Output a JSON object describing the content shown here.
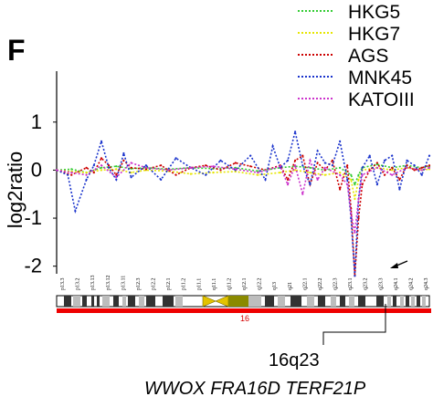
{
  "panel_label": "F",
  "chart_data": {
    "type": "line",
    "title": "",
    "xlabel": "",
    "ylabel": "log2ratio",
    "ylim": [
      -2.5,
      1.3
    ],
    "yticks": [
      1,
      0,
      -1,
      -2
    ],
    "xlim": [
      0,
      100
    ],
    "grid": false,
    "legend_position": "top-right",
    "chromosome": "16",
    "bands": [
      "p13.3",
      "p13.2",
      "p13.13",
      "p13.12",
      "p13.11",
      "p12.3",
      "p12.2",
      "p12.1",
      "p11.2",
      "p11.1",
      "q11.1",
      "q11.2",
      "q12.1",
      "q12.2",
      "q13",
      "q21",
      "q22.1",
      "q22.2",
      "q22.3",
      "q23.1",
      "q23.2",
      "q23.3",
      "q24.1",
      "q24.2",
      "q24.3"
    ],
    "annotation": {
      "band": "16q23",
      "genes": "WWOX FRA16D TERF21P",
      "x": 80
    },
    "series": [
      {
        "name": "HKG5",
        "color": "#33cc33",
        "x": [
          0,
          4,
          8,
          12,
          16,
          20,
          24,
          30,
          36,
          42,
          48,
          54,
          60,
          64,
          68,
          72,
          76,
          79,
          80,
          81,
          82,
          86,
          90,
          94,
          98,
          100
        ],
        "values": [
          0,
          0.02,
          -0.05,
          0.05,
          0.08,
          0.03,
          0.05,
          0.02,
          0.05,
          0.03,
          0.05,
          -0.02,
          0.05,
          0.08,
          0.05,
          0,
          0.05,
          -0.1,
          -0.3,
          -0.1,
          0.05,
          0.12,
          0.05,
          0.1,
          0.05,
          0.08
        ]
      },
      {
        "name": "HKG7",
        "color": "#e6e600",
        "x": [
          0,
          4,
          8,
          12,
          16,
          20,
          24,
          30,
          36,
          42,
          48,
          54,
          60,
          64,
          68,
          72,
          76,
          79,
          80,
          81,
          82,
          86,
          90,
          94,
          98,
          100
        ],
        "values": [
          0,
          -0.03,
          -0.05,
          0,
          0.02,
          -0.05,
          0,
          -0.02,
          -0.08,
          -0.05,
          -0.03,
          -0.1,
          -0.05,
          0,
          -0.05,
          -0.1,
          -0.05,
          -0.2,
          -0.6,
          -0.2,
          0,
          0.05,
          0,
          0.05,
          0,
          0.02
        ]
      },
      {
        "name": "AGS",
        "color": "#cc0000",
        "x": [
          0,
          4,
          8,
          10,
          12,
          14,
          16,
          18,
          20,
          24,
          28,
          32,
          36,
          40,
          44,
          48,
          52,
          56,
          60,
          62,
          64,
          66,
          68,
          70,
          72,
          74,
          76,
          78,
          79,
          80,
          81,
          82,
          84,
          86,
          88,
          90,
          92,
          94,
          96,
          98,
          100
        ],
        "values": [
          0,
          -0.1,
          0.05,
          -0.05,
          0.25,
          0.1,
          -0.1,
          0.2,
          0.05,
          0.02,
          0.1,
          -0.1,
          0.05,
          0.1,
          0,
          0.15,
          0.08,
          0,
          0.1,
          -0.2,
          0.2,
          0.3,
          -0.3,
          0.15,
          0,
          0.2,
          -0.4,
          0.1,
          -0.8,
          -2.2,
          -1.0,
          -0.3,
          0,
          0.15,
          -0.1,
          0.05,
          -0.2,
          0.1,
          0,
          0.05,
          0.1
        ]
      },
      {
        "name": "MNK45",
        "color": "#1a33cc",
        "x": [
          0,
          3,
          5,
          8,
          10,
          12,
          14,
          16,
          18,
          20,
          24,
          28,
          32,
          36,
          40,
          44,
          48,
          52,
          56,
          58,
          60,
          62,
          64,
          66,
          68,
          70,
          72,
          74,
          76,
          78,
          79,
          80,
          81,
          82,
          84,
          86,
          88,
          90,
          92,
          94,
          96,
          98,
          100
        ],
        "values": [
          0,
          -0.1,
          -0.85,
          -0.2,
          0.1,
          0.6,
          0.05,
          -0.2,
          0.35,
          -0.15,
          0.1,
          -0.2,
          0.25,
          0.05,
          -0.1,
          0.2,
          0,
          0.3,
          -0.2,
          0.5,
          0.05,
          0.2,
          0.8,
          0.1,
          -0.3,
          0.4,
          0.15,
          0.1,
          0.6,
          -0.2,
          -1.0,
          -2.2,
          -0.6,
          0.05,
          0.3,
          -0.3,
          0.2,
          0.3,
          -0.4,
          0.2,
          0.1,
          -0.1,
          0.3
        ]
      },
      {
        "name": "KATOIII",
        "color": "#cc33cc",
        "x": [
          0,
          4,
          8,
          12,
          16,
          20,
          24,
          30,
          36,
          42,
          48,
          54,
          60,
          62,
          64,
          66,
          68,
          70,
          72,
          76,
          78,
          79,
          80,
          81,
          82,
          86,
          90,
          94,
          98,
          100
        ],
        "values": [
          0,
          -0.05,
          -0.1,
          0.1,
          -0.15,
          0.15,
          0.05,
          0,
          0.05,
          0.08,
          0.02,
          -0.05,
          0.08,
          -0.3,
          0.1,
          -0.5,
          0.2,
          -0.2,
          0.05,
          -0.1,
          -0.3,
          -0.9,
          -1.3,
          -0.6,
          -0.1,
          0.05,
          -0.1,
          0.05,
          0,
          0.05
        ]
      }
    ]
  }
}
